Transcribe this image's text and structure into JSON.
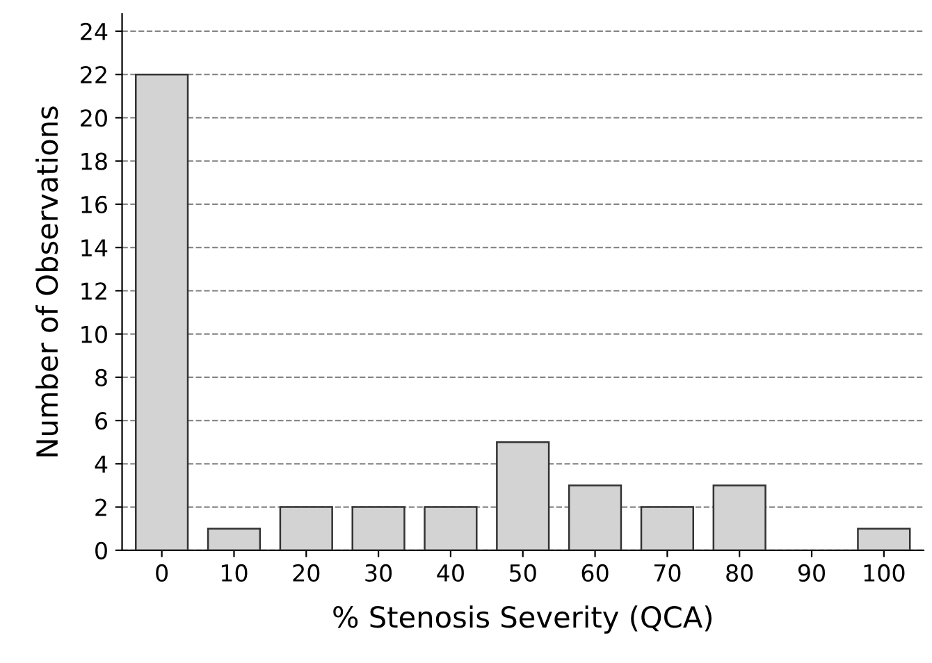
{
  "chart_data": {
    "type": "bar",
    "xlabel": "% Stenosis Severity (QCA)",
    "ylabel": "Number of Observations",
    "categories": [
      "0",
      "10",
      "20",
      "30",
      "40",
      "50",
      "60",
      "70",
      "80",
      "90",
      "100"
    ],
    "values": [
      22,
      1,
      2,
      2,
      2,
      5,
      3,
      2,
      3,
      0,
      1
    ],
    "color": "#d3d3d3",
    "ylim": [
      0,
      24.8
    ],
    "yticks": [
      0,
      2,
      4,
      6,
      8,
      10,
      12,
      14,
      16,
      18,
      20,
      22,
      24
    ],
    "grid": "y",
    "line_style": "dashed"
  }
}
